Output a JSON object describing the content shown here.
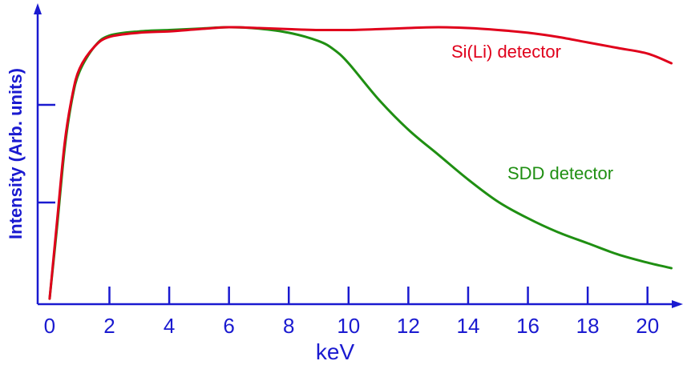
{
  "chart_data": {
    "type": "line",
    "xlabel": "keV",
    "ylabel": "Intensity (Arb. units)",
    "xlim": [
      -0.4,
      21
    ],
    "ylim": [
      0,
      1
    ],
    "x_ticks": [
      0,
      2,
      4,
      6,
      8,
      10,
      12,
      14,
      16,
      18,
      20
    ],
    "grid": false,
    "legend": "none",
    "colors": {
      "axis": "#1a1ad0",
      "sili": "#e0001b",
      "sdd": "#1f8f12"
    },
    "series": [
      {
        "name": "Si(Li) detector",
        "color": "#e0001b",
        "x": [
          0,
          0.25,
          0.5,
          0.75,
          1,
          1.5,
          2,
          3,
          4,
          5,
          6,
          7,
          8,
          9,
          10,
          11,
          12,
          13,
          14,
          15,
          16,
          17,
          18,
          19,
          20,
          20.8
        ],
        "y": [
          0.02,
          0.3,
          0.58,
          0.75,
          0.85,
          0.93,
          0.965,
          0.98,
          0.985,
          0.993,
          1.0,
          0.997,
          0.993,
          0.99,
          0.99,
          0.993,
          0.997,
          1.0,
          0.997,
          0.99,
          0.98,
          0.965,
          0.945,
          0.925,
          0.905,
          0.87
        ]
      },
      {
        "name": "SDD detector",
        "color": "#1f8f12",
        "x": [
          0,
          0.25,
          0.5,
          0.75,
          1,
          1.5,
          2,
          3,
          4,
          5,
          6,
          7,
          8,
          9,
          9.5,
          10,
          11,
          12,
          13,
          14,
          15,
          16,
          17,
          18,
          19,
          20,
          20.8
        ],
        "y": [
          0.02,
          0.28,
          0.56,
          0.74,
          0.84,
          0.93,
          0.97,
          0.985,
          0.99,
          0.995,
          1.0,
          0.995,
          0.98,
          0.95,
          0.92,
          0.87,
          0.74,
          0.63,
          0.54,
          0.45,
          0.37,
          0.31,
          0.26,
          0.22,
          0.18,
          0.15,
          0.13
        ]
      }
    ]
  }
}
